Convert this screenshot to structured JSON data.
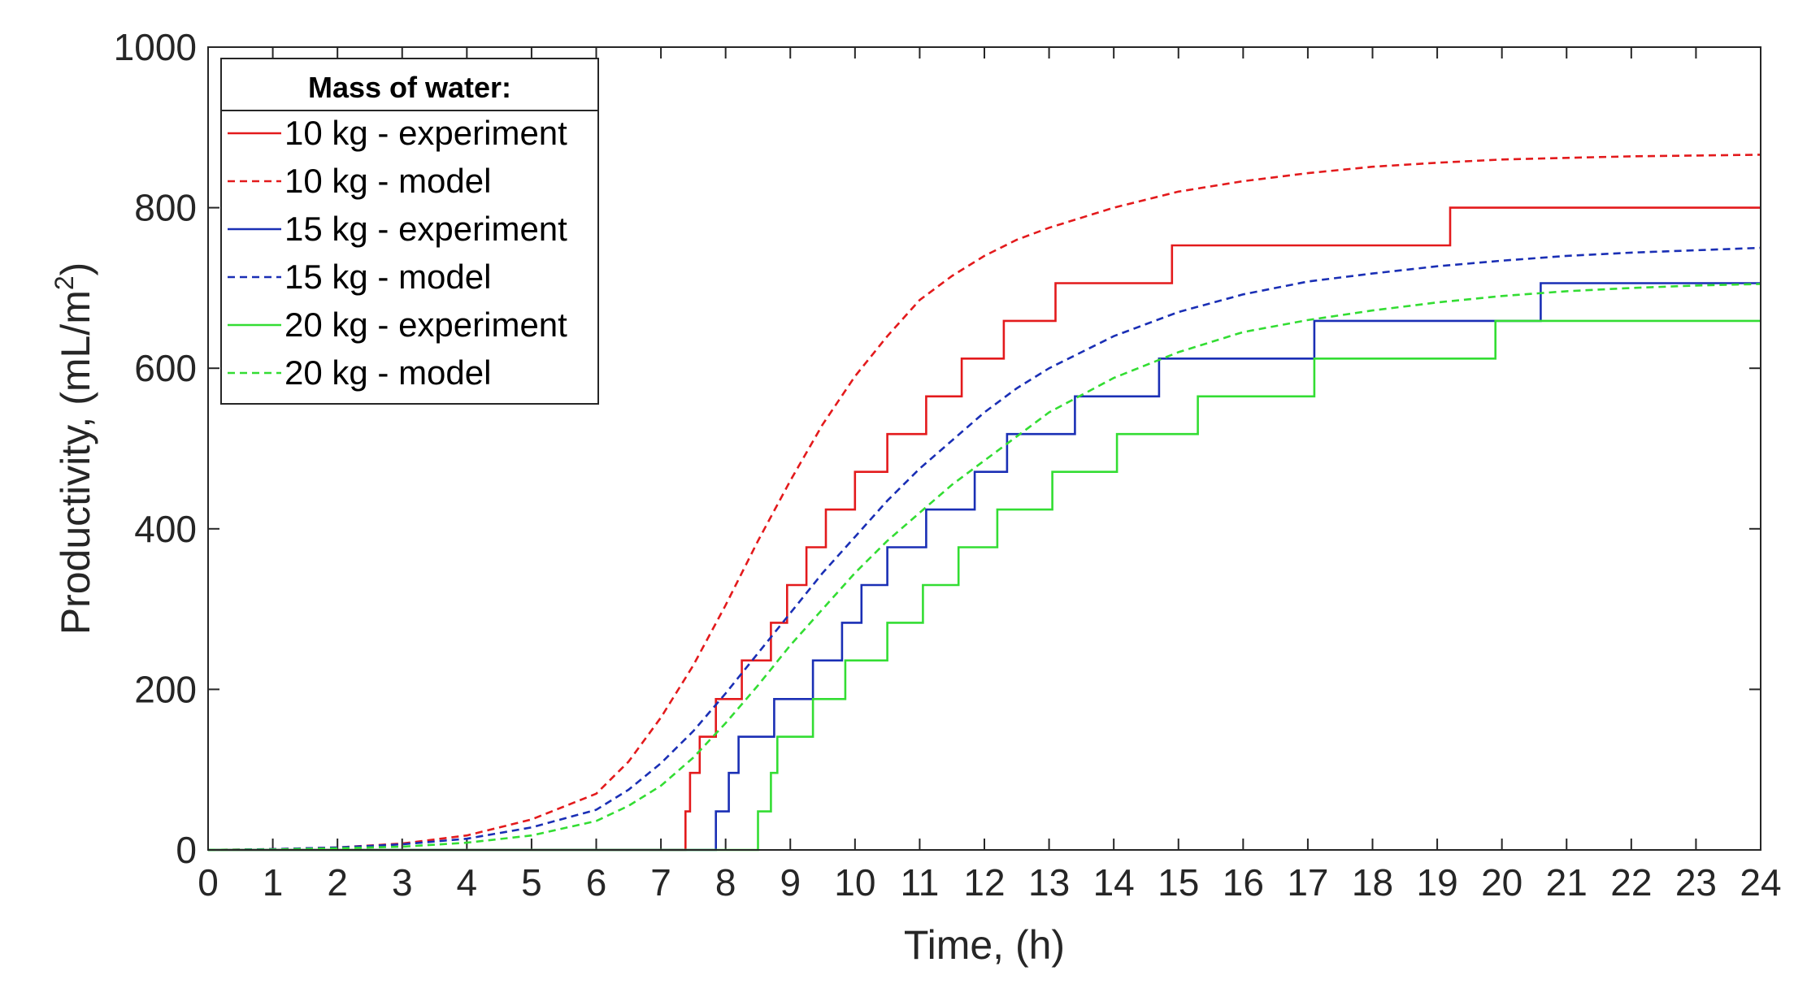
{
  "chart_data": {
    "type": "line",
    "title": "",
    "xlabel": "Time, (h)",
    "ylabel": "Productivity, (mL/m",
    "ylabel_sup": "2",
    "ylabel_close": ")",
    "xlim": [
      0,
      24
    ],
    "ylim": [
      0,
      1000
    ],
    "xticks": [
      0,
      1,
      2,
      3,
      4,
      5,
      6,
      7,
      8,
      9,
      10,
      11,
      12,
      13,
      14,
      15,
      16,
      17,
      18,
      19,
      20,
      21,
      22,
      23,
      24
    ],
    "yticks": [
      0,
      200,
      400,
      600,
      800,
      1000
    ],
    "legend": {
      "title": "Mass of water:",
      "placement": "top-left"
    },
    "series": [
      {
        "name": "10 kg - experiment",
        "color": "#e31a1c",
        "style": "step",
        "x": [
          0,
          7.38,
          7.38,
          7.45,
          7.45,
          7.6,
          7.6,
          7.85,
          7.85,
          8.25,
          8.25,
          8.7,
          8.7,
          8.95,
          8.95,
          9.25,
          9.25,
          9.55,
          9.55,
          10.0,
          10.0,
          10.5,
          10.5,
          11.1,
          11.1,
          11.65,
          11.65,
          12.3,
          12.3,
          13.1,
          13.1,
          14.9,
          14.9,
          19.2,
          19.2,
          24
        ],
        "y": [
          0,
          0,
          48,
          48,
          96,
          96,
          141,
          141,
          188,
          188,
          236,
          236,
          283,
          283,
          330,
          330,
          377,
          377,
          424,
          424,
          471,
          471,
          518,
          518,
          565,
          565,
          612,
          612,
          659,
          659,
          706,
          706,
          753,
          753,
          800,
          800
        ]
      },
      {
        "name": "10 kg - model",
        "color": "#e31a1c",
        "style": "dashed",
        "x": [
          0,
          1,
          2,
          3,
          4,
          5,
          6,
          6.5,
          7,
          7.5,
          8,
          8.5,
          9,
          9.5,
          10,
          10.5,
          11,
          11.5,
          12,
          12.5,
          13,
          14,
          15,
          16,
          17,
          18,
          19,
          20,
          21,
          22,
          23,
          24
        ],
        "y": [
          0,
          1,
          3,
          8,
          18,
          38,
          70,
          110,
          165,
          230,
          305,
          385,
          460,
          530,
          590,
          640,
          685,
          715,
          740,
          760,
          775,
          800,
          820,
          833,
          843,
          851,
          856,
          860,
          862,
          864,
          865,
          866
        ]
      },
      {
        "name": "15 kg - experiment",
        "color": "#1a2fb5",
        "style": "step",
        "x": [
          0,
          7.85,
          7.85,
          8.05,
          8.05,
          8.2,
          8.2,
          8.75,
          8.75,
          9.35,
          9.35,
          9.8,
          9.8,
          10.1,
          10.1,
          10.5,
          10.5,
          11.1,
          11.1,
          11.85,
          11.85,
          12.35,
          12.35,
          13.4,
          13.4,
          14.7,
          14.7,
          17.1,
          17.1,
          20.6,
          20.6,
          24
        ],
        "y": [
          0,
          0,
          48,
          48,
          96,
          96,
          141,
          141,
          188,
          188,
          236,
          236,
          283,
          283,
          330,
          330,
          377,
          377,
          424,
          424,
          471,
          471,
          518,
          518,
          565,
          565,
          612,
          612,
          659,
          659,
          706,
          706
        ]
      },
      {
        "name": "15 kg - model",
        "color": "#1a2fb5",
        "style": "dashed",
        "x": [
          0,
          1,
          2,
          3,
          4,
          5,
          6,
          6.5,
          7,
          7.5,
          8,
          8.5,
          9,
          9.5,
          10,
          10.5,
          11,
          11.5,
          12,
          12.5,
          13,
          14,
          15,
          16,
          17,
          18,
          19,
          20,
          21,
          22,
          23,
          24
        ],
        "y": [
          0,
          1,
          3,
          7,
          14,
          28,
          50,
          75,
          108,
          148,
          195,
          245,
          295,
          345,
          390,
          435,
          475,
          510,
          545,
          575,
          600,
          640,
          670,
          692,
          708,
          718,
          727,
          734,
          740,
          744,
          747,
          750
        ]
      },
      {
        "name": "20 kg - experiment",
        "color": "#33dd33",
        "style": "step",
        "x": [
          0,
          8.5,
          8.5,
          8.7,
          8.7,
          8.8,
          8.8,
          9.35,
          9.35,
          9.85,
          9.85,
          10.5,
          10.5,
          11.05,
          11.05,
          11.6,
          11.6,
          12.2,
          12.2,
          13.05,
          13.05,
          14.05,
          14.05,
          15.3,
          15.3,
          17.1,
          17.1,
          19.9,
          19.9,
          24
        ],
        "y": [
          0,
          0,
          48,
          48,
          96,
          96,
          141,
          141,
          188,
          188,
          236,
          236,
          283,
          283,
          330,
          330,
          377,
          377,
          424,
          424,
          471,
          471,
          518,
          518,
          565,
          565,
          612,
          612,
          659,
          659
        ]
      },
      {
        "name": "20 kg - model",
        "color": "#33dd33",
        "style": "dashed",
        "x": [
          0,
          1,
          2,
          3,
          4,
          5,
          6,
          6.5,
          7,
          7.5,
          8,
          8.5,
          9,
          9.5,
          10,
          10.5,
          11,
          11.5,
          12,
          12.5,
          13,
          14,
          15,
          16,
          17,
          18,
          19,
          20,
          21,
          22,
          23,
          24
        ],
        "y": [
          0,
          0.5,
          2,
          4,
          9,
          18,
          36,
          55,
          80,
          115,
          158,
          205,
          255,
          300,
          345,
          385,
          420,
          455,
          485,
          515,
          545,
          588,
          620,
          645,
          660,
          672,
          682,
          690,
          696,
          700,
          703,
          705
        ]
      }
    ]
  }
}
